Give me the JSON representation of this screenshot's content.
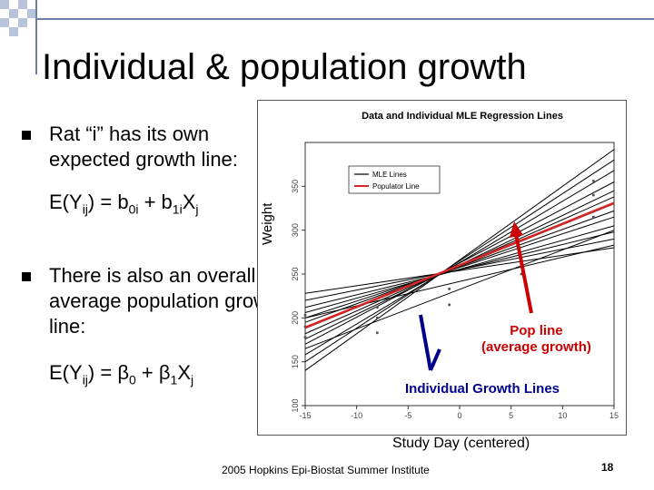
{
  "slide": {
    "title": "Individual & population growth",
    "bullet1": "Rat “i” has its own expected growth line:",
    "formula1": {
      "lhs": "E(Y",
      "ij": "ij",
      "mid": ") = b",
      "s0i": "0i",
      "plus": " + b",
      "s1i": "1i",
      "x": "X",
      "j": "j"
    },
    "bullet2": "There is also an overall, average population growth line:",
    "formula2": {
      "lhs": "E(Y",
      "ij": "ij",
      "mid": ") = β",
      "s0": "0",
      "plus": " + β",
      "s1": "1",
      "x": "X",
      "j": "j"
    },
    "footer": "2005 Hopkins Epi-Biostat Summer Institute",
    "page_number": "18"
  },
  "chart_data": {
    "type": "line",
    "title": "Data and Individual MLE Regression Lines",
    "xlabel": "Study Day (centered)",
    "ylabel": "Weight",
    "xlim": [
      -15,
      15
    ],
    "ylim": [
      100,
      400
    ],
    "xticks": [
      "-15",
      "-10",
      "-5",
      "0",
      "5",
      "10",
      "15"
    ],
    "yticks": [
      "100",
      "150",
      "200",
      "250",
      "300",
      "350"
    ],
    "legend": {
      "position": "top-left",
      "entries": [
        "MLE Lines",
        "Populator Line"
      ]
    },
    "population_line": {
      "x": [
        -15,
        15
      ],
      "y": [
        189,
        331
      ]
    },
    "individual_lines": [
      {
        "x": [
          -15,
          15
        ],
        "y": [
          140,
          392
        ]
      },
      {
        "x": [
          -15,
          15
        ],
        "y": [
          150,
          380
        ]
      },
      {
        "x": [
          -15,
          15
        ],
        "y": [
          158,
          368
        ]
      },
      {
        "x": [
          -15,
          15
        ],
        "y": [
          170,
          355
        ]
      },
      {
        "x": [
          -15,
          15
        ],
        "y": [
          176,
          345
        ]
      },
      {
        "x": [
          -15,
          15
        ],
        "y": [
          182,
          338
        ]
      },
      {
        "x": [
          -15,
          15
        ],
        "y": [
          188,
          330
        ]
      },
      {
        "x": [
          -15,
          15
        ],
        "y": [
          195,
          322
        ]
      },
      {
        "x": [
          -15,
          15
        ],
        "y": [
          200,
          315
        ]
      },
      {
        "x": [
          -15,
          15
        ],
        "y": [
          206,
          305
        ]
      },
      {
        "x": [
          -15,
          15
        ],
        "y": [
          212,
          298
        ]
      },
      {
        "x": [
          -15,
          15
        ],
        "y": [
          220,
          290
        ]
      },
      {
        "x": [
          -15,
          15
        ],
        "y": [
          228,
          280
        ]
      },
      {
        "x": [
          -15,
          15
        ],
        "y": [
          165,
          300
        ]
      },
      {
        "x": [
          -15,
          15
        ],
        "y": [
          200,
          283
        ]
      }
    ],
    "points": [
      {
        "x": -15,
        "y": 178
      },
      {
        "x": -15,
        "y": 190
      },
      {
        "x": -15,
        "y": 203
      },
      {
        "x": -8,
        "y": 183
      },
      {
        "x": -8,
        "y": 200
      },
      {
        "x": -8,
        "y": 212
      },
      {
        "x": -1,
        "y": 215
      },
      {
        "x": -1,
        "y": 233
      },
      {
        "x": 6,
        "y": 250
      },
      {
        "x": 6,
        "y": 258
      },
      {
        "x": 6,
        "y": 265
      },
      {
        "x": 13,
        "y": 315
      },
      {
        "x": 13,
        "y": 340
      },
      {
        "x": 13,
        "y": 356
      }
    ],
    "annotations": [
      {
        "text": "Pop line (average growth)",
        "line1": "Pop line",
        "line2": "(average growth)",
        "color": "#cc0000"
      },
      {
        "text": "Individual Growth Lines",
        "color": "#00008b"
      }
    ]
  }
}
